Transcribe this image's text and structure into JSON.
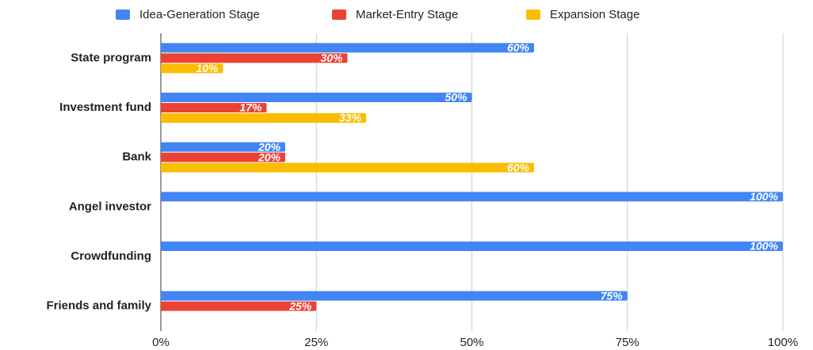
{
  "chart_data": {
    "type": "bar",
    "orientation": "horizontal",
    "categories": [
      "State program",
      "Investment fund",
      "Bank",
      "Angel investor",
      "Crowdfunding",
      "Friends and family"
    ],
    "series": [
      {
        "name": "Idea-Generation Stage",
        "color": "#4285f4",
        "values": [
          60,
          50,
          20,
          100,
          100,
          75
        ],
        "value_labels": [
          "60%",
          "50%",
          "20%",
          "100%",
          "100%",
          "75%"
        ]
      },
      {
        "name": "Market-Entry Stage",
        "color": "#ea4335",
        "values": [
          30,
          17,
          20,
          null,
          null,
          25
        ],
        "value_labels": [
          "30%",
          "17%",
          "20%",
          null,
          null,
          "25%"
        ]
      },
      {
        "name": "Expansion Stage",
        "color": "#fbbc04",
        "values": [
          10,
          33,
          60,
          null,
          null,
          null
        ],
        "value_labels": [
          "10%",
          "33%",
          "60%",
          null,
          null,
          null
        ]
      }
    ],
    "xlim": [
      0,
      100
    ],
    "xticks": [
      {
        "value": 0,
        "label": "0%"
      },
      {
        "value": 25,
        "label": "25%"
      },
      {
        "value": 50,
        "label": "50%"
      },
      {
        "value": 75,
        "label": "75%"
      },
      {
        "value": 100,
        "label": "100%"
      }
    ],
    "grid": true,
    "legend": "top"
  }
}
